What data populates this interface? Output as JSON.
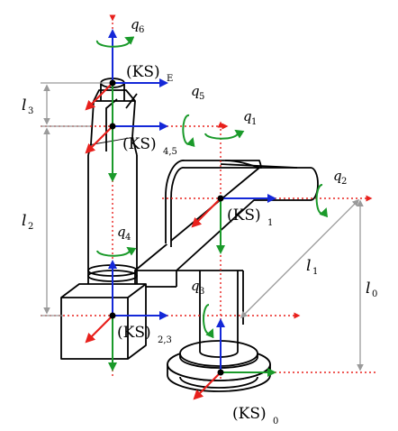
{
  "colors": {
    "x_axis": "#e8201c",
    "y_axis": "#1a9a2a",
    "z_axis": "#1428d8",
    "rotation": "#1a9a2a",
    "centerline": "#e8201c",
    "dimension": "#9a9a9a",
    "outline": "#000000"
  },
  "frames": {
    "e": {
      "main": "(KS)",
      "sub": "E"
    },
    "f45": {
      "main": "(KS)",
      "sub": "4,5"
    },
    "f1": {
      "main": "(KS)",
      "sub": "1"
    },
    "f23": {
      "main": "(KS)",
      "sub": "2,3"
    },
    "f0": {
      "main": "(KS)",
      "sub": "0"
    }
  },
  "joints": {
    "q1": {
      "main": "q",
      "sub": "1"
    },
    "q2": {
      "main": "q",
      "sub": "2"
    },
    "q3": {
      "main": "q",
      "sub": "3"
    },
    "q4": {
      "main": "q",
      "sub": "4"
    },
    "q5": {
      "main": "q",
      "sub": "5"
    },
    "q6": {
      "main": "q",
      "sub": "6"
    }
  },
  "lengths": {
    "l0": {
      "main": "l",
      "sub": "0"
    },
    "l1": {
      "main": "l",
      "sub": "1"
    },
    "l2": {
      "main": "l",
      "sub": "2"
    },
    "l3": {
      "main": "l",
      "sub": "3"
    }
  }
}
